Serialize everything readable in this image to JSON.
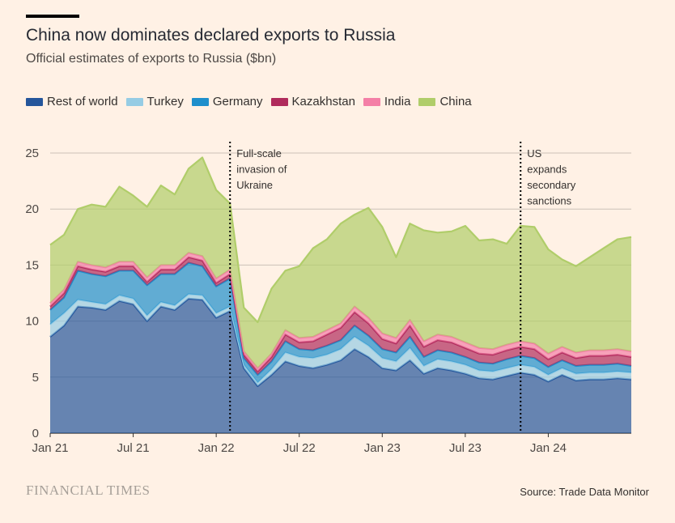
{
  "title": "China now dominates declared exports to Russia",
  "subtitle": "Official estimates of exports to Russia ($bn)",
  "source": "Source: Trade Data Monitor",
  "brand": "FINANCIAL TIMES",
  "colors": {
    "background": "#FFF1E5",
    "rest_of_world": "#25569B",
    "turkey": "#96CCE4",
    "germany": "#1E8FCC",
    "kazakhstan": "#B02B5C",
    "india": "#F47FA6",
    "china": "#B0CD6A"
  },
  "chart_data": {
    "type": "area",
    "stacked": true,
    "ylim": [
      0,
      25
    ],
    "yticks": [
      0,
      5,
      10,
      15,
      20,
      25
    ],
    "x_tick_labels": [
      {
        "label": "Jan 21",
        "x": "2021-01"
      },
      {
        "label": "Jul 21",
        "x": "2021-07"
      },
      {
        "label": "Jan 22",
        "x": "2022-01"
      },
      {
        "label": "Jul 22",
        "x": "2022-07"
      },
      {
        "label": "Jan 23",
        "x": "2023-01"
      },
      {
        "label": "Jul 23",
        "x": "2023-07"
      },
      {
        "label": "Jan 24",
        "x": "2024-01"
      }
    ],
    "grid": true,
    "legend_position": "top-left",
    "x": [
      "2021-01",
      "2021-02",
      "2021-03",
      "2021-04",
      "2021-05",
      "2021-06",
      "2021-07",
      "2021-08",
      "2021-09",
      "2021-10",
      "2021-11",
      "2021-12",
      "2022-01",
      "2022-02",
      "2022-03",
      "2022-04",
      "2022-05",
      "2022-06",
      "2022-07",
      "2022-08",
      "2022-09",
      "2022-10",
      "2022-11",
      "2022-12",
      "2023-01",
      "2023-02",
      "2023-03",
      "2023-04",
      "2023-05",
      "2023-06",
      "2023-07",
      "2023-08",
      "2023-09",
      "2023-10",
      "2023-11",
      "2023-12",
      "2024-01",
      "2024-02",
      "2024-03",
      "2024-04",
      "2024-05",
      "2024-06",
      "2024-07"
    ],
    "series": [
      {
        "name": "Rest of world",
        "color": "#25569B",
        "values": [
          8.6,
          9.6,
          11.3,
          11.2,
          11.0,
          11.8,
          11.5,
          10.0,
          11.3,
          11.0,
          12.0,
          11.9,
          10.3,
          10.9,
          5.8,
          4.2,
          5.2,
          6.4,
          6.0,
          5.8,
          6.1,
          6.5,
          7.5,
          6.8,
          5.8,
          5.6,
          6.5,
          5.3,
          5.8,
          5.6,
          5.3,
          4.9,
          4.8,
          5.1,
          5.4,
          5.2,
          4.6,
          5.2,
          4.7,
          4.8,
          4.8,
          4.9,
          4.8
        ]
      },
      {
        "name": "Turkey",
        "color": "#96CCE4",
        "values": [
          1.1,
          1.1,
          0.6,
          0.5,
          0.5,
          0.5,
          0.5,
          0.5,
          0.4,
          0.4,
          0.4,
          0.4,
          0.4,
          0.4,
          0.3,
          0.3,
          0.5,
          0.8,
          0.8,
          0.9,
          0.9,
          1.0,
          1.1,
          1.0,
          0.9,
          0.8,
          1.1,
          0.7,
          0.8,
          0.8,
          0.8,
          0.7,
          0.7,
          0.7,
          0.7,
          0.7,
          0.6,
          0.6,
          0.6,
          0.6,
          0.6,
          0.6,
          0.6
        ]
      },
      {
        "name": "Germany",
        "color": "#1E8FCC",
        "values": [
          1.3,
          1.4,
          2.6,
          2.5,
          2.5,
          2.2,
          2.5,
          2.7,
          2.5,
          2.8,
          2.8,
          2.6,
          2.4,
          2.5,
          0.6,
          0.7,
          0.7,
          1.0,
          0.7,
          0.7,
          0.8,
          0.8,
          1.0,
          0.9,
          0.8,
          0.8,
          1.0,
          0.8,
          0.8,
          0.8,
          0.7,
          0.7,
          0.7,
          0.8,
          0.8,
          0.8,
          0.7,
          0.7,
          0.7,
          0.7,
          0.7,
          0.7,
          0.6
        ]
      },
      {
        "name": "Kazakhstan",
        "color": "#B02B5C",
        "values": [
          0.3,
          0.4,
          0.4,
          0.4,
          0.4,
          0.4,
          0.4,
          0.3,
          0.4,
          0.4,
          0.5,
          0.5,
          0.3,
          0.4,
          0.3,
          0.3,
          0.4,
          0.6,
          0.6,
          0.8,
          1.0,
          1.1,
          1.2,
          1.1,
          0.9,
          0.8,
          1.0,
          0.9,
          0.9,
          0.9,
          0.8,
          0.8,
          0.8,
          0.8,
          0.8,
          0.8,
          0.7,
          0.7,
          0.7,
          0.8,
          0.8,
          0.8,
          0.8
        ]
      },
      {
        "name": "India",
        "color": "#F47FA6",
        "values": [
          0.3,
          0.3,
          0.4,
          0.4,
          0.4,
          0.4,
          0.4,
          0.4,
          0.4,
          0.4,
          0.4,
          0.4,
          0.4,
          0.4,
          0.3,
          0.3,
          0.3,
          0.4,
          0.4,
          0.4,
          0.4,
          0.4,
          0.5,
          0.5,
          0.5,
          0.5,
          0.5,
          0.5,
          0.5,
          0.5,
          0.5,
          0.5,
          0.5,
          0.5,
          0.5,
          0.5,
          0.5,
          0.5,
          0.5,
          0.5,
          0.5,
          0.5,
          0.5
        ]
      },
      {
        "name": "China",
        "color": "#B0CD6A",
        "values": [
          5.2,
          4.9,
          4.7,
          5.4,
          5.4,
          6.7,
          5.9,
          6.3,
          7.1,
          6.3,
          7.5,
          8.8,
          7.9,
          5.9,
          3.9,
          4.1,
          5.8,
          5.3,
          6.4,
          7.9,
          8.1,
          8.9,
          8.2,
          9.8,
          9.5,
          7.2,
          8.6,
          9.9,
          9.1,
          9.4,
          10.4,
          9.6,
          9.8,
          9.0,
          10.3,
          10.4,
          9.3,
          7.8,
          7.7,
          8.3,
          9.1,
          9.8,
          10.2
        ]
      }
    ],
    "annotations": [
      {
        "x": "2022-02",
        "text": [
          "Full-scale",
          "invasion of",
          "Ukraine"
        ]
      },
      {
        "x": "2023-11",
        "text": [
          "US",
          "expands",
          "secondary",
          "sanctions"
        ]
      }
    ]
  }
}
